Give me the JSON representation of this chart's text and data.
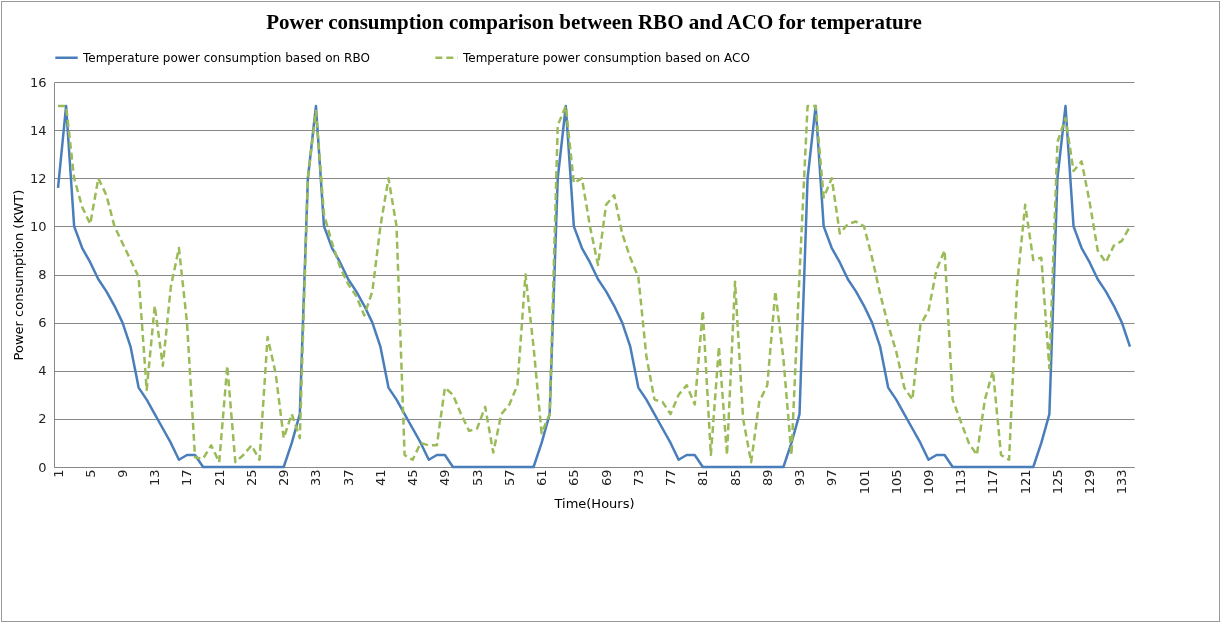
{
  "chart_data": {
    "type": "line",
    "title": "Power consumption  comparison  between RBO and ACO for temperature",
    "xlabel": "Time(Hours)",
    "ylabel": "Power consumption  (KWT)",
    "categories": [
      "1",
      null,
      null,
      null,
      "5",
      null,
      null,
      null,
      "9",
      null,
      null,
      null,
      "13",
      null,
      null,
      null,
      "17",
      null,
      null,
      null,
      "21",
      null,
      null,
      null,
      "25",
      null,
      null,
      null,
      "29",
      null,
      null,
      null,
      "33",
      null,
      null,
      null,
      "37",
      null,
      null,
      null,
      "41",
      null,
      null,
      null,
      "45",
      null,
      null,
      null,
      "49",
      null,
      null,
      null,
      "53",
      null,
      null,
      null,
      "57",
      null,
      null,
      null,
      "61",
      null,
      null,
      null,
      "65",
      null,
      null,
      null,
      "69",
      null,
      null,
      null,
      "73",
      null,
      null,
      null,
      "77",
      null,
      null,
      null,
      "81",
      null,
      null,
      null,
      "85",
      null,
      null,
      null,
      "89",
      null,
      null,
      null,
      "93",
      null,
      null,
      null,
      "97",
      null,
      null,
      null,
      "101",
      null,
      null,
      null,
      "105",
      null,
      null,
      null,
      "109",
      null,
      null,
      null,
      "113",
      null,
      null,
      null,
      "117",
      null,
      null,
      null,
      "121",
      null,
      null,
      null,
      "125",
      null,
      null,
      null,
      "129",
      null,
      null,
      null,
      "133",
      null
    ],
    "series": [
      {
        "name": "Temperature power consumption based on RBO",
        "color": "#4a7ebb",
        "line_style": "solid",
        "values": [
          11.6,
          15,
          10,
          9.1,
          8.5,
          7.8,
          7.3,
          6.7,
          6,
          5,
          3.3,
          2.8,
          2.2,
          1.6,
          1,
          0.3,
          0.5,
          0.5,
          0,
          0,
          0,
          0,
          0,
          0,
          0,
          0,
          0,
          0,
          0,
          1,
          2.2,
          12,
          15,
          10,
          9.1,
          8.5,
          7.8,
          7.3,
          6.7,
          6,
          5,
          3.3,
          2.8,
          2.2,
          1.6,
          1,
          0.3,
          0.5,
          0.5,
          0,
          0,
          0,
          0,
          0,
          0,
          0,
          0,
          0,
          0,
          0,
          1,
          2.2,
          12,
          15,
          10,
          9.1,
          8.5,
          7.8,
          7.3,
          6.7,
          6,
          5,
          3.3,
          2.8,
          2.2,
          1.6,
          1,
          0.3,
          0.5,
          0.5,
          0,
          0,
          0,
          0,
          0,
          0,
          0,
          0,
          0,
          0,
          0,
          1,
          2.2,
          12,
          15,
          10,
          9.1,
          8.5,
          7.8,
          7.3,
          6.7,
          6,
          5,
          3.3,
          2.8,
          2.2,
          1.6,
          1,
          0.3,
          0.5,
          0.5,
          0,
          0,
          0,
          0,
          0,
          0,
          0,
          0,
          0,
          0,
          0,
          1,
          2.2,
          12,
          15,
          10,
          9.1,
          8.5,
          7.8,
          7.3,
          6.7,
          6,
          5
        ]
      },
      {
        "name": "Temperature power consumption based on ACO",
        "color": "#9bbb59",
        "line_style": "dashed",
        "values": [
          15,
          15,
          12,
          10.8,
          10.1,
          12,
          11.3,
          10,
          9.3,
          8.6,
          7.9,
          3.2,
          6.7,
          4.2,
          7.5,
          9.1,
          6,
          0.4,
          0.35,
          0.9,
          0.2,
          4.2,
          0.2,
          0.5,
          0.9,
          0.3,
          5.4,
          3.9,
          1.2,
          2.2,
          1.2,
          12,
          14.8,
          10.5,
          9.3,
          8.3,
          7.6,
          7.1,
          6.3,
          7.3,
          10,
          12,
          10,
          0.5,
          0.3,
          1,
          0.9,
          0.9,
          3.3,
          3,
          2.2,
          1.5,
          1.6,
          2.5,
          0.6,
          2.2,
          2.6,
          3.4,
          8,
          5,
          1.4,
          2.2,
          14.2,
          15,
          11.8,
          12,
          10,
          8.4,
          10.9,
          11.3,
          9.7,
          8.7,
          7.9,
          4.6,
          2.8,
          2.7,
          2.2,
          3,
          3.4,
          2.6,
          6.5,
          0.5,
          5,
          0.5,
          7.7,
          2,
          0.2,
          2.7,
          3.4,
          7.3,
          4.5,
          0.5,
          8,
          15,
          15,
          11.2,
          12,
          9.7,
          10.1,
          10.2,
          10,
          8.7,
          7.2,
          5.9,
          4.8,
          3.3,
          2.8,
          5.9,
          6.5,
          8.2,
          9,
          2.8,
          1.9,
          1,
          0.5,
          2.8,
          4,
          0.5,
          0.3,
          7.6,
          10.9,
          8.6,
          8.7,
          4.1,
          13.5,
          14.5,
          12.3,
          12.7,
          11,
          9,
          8.5,
          9.2,
          9.4,
          10
        ]
      }
    ],
    "ylim": [
      0,
      16
    ],
    "yticks": [
      0,
      2,
      4,
      6,
      8,
      10,
      12,
      14,
      16
    ],
    "grid": "y",
    "legend": "top"
  }
}
